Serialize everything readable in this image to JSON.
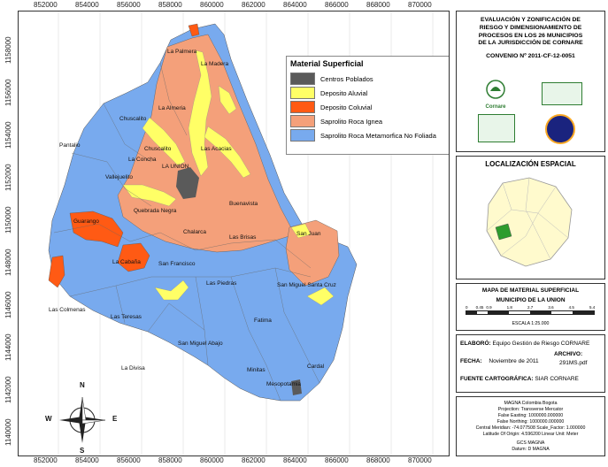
{
  "map": {
    "top_ticks": [
      "852000",
      "854000",
      "856000",
      "858000",
      "860000",
      "862000",
      "864000",
      "866000",
      "868000",
      "870000"
    ],
    "bottom_ticks": [
      "852000",
      "854000",
      "856000",
      "858000",
      "860000",
      "862000",
      "864000",
      "866000",
      "868000",
      "870000"
    ],
    "left_ticks": [
      "1158000",
      "1156000",
      "1154000",
      "1152000",
      "1150000",
      "1148000",
      "1146000",
      "1144000",
      "1142000",
      "1140000"
    ],
    "legend": {
      "title": "Material Superficial",
      "items": [
        {
          "label": "Centros Poblados",
          "color": "#5a5a5a"
        },
        {
          "label": "Deposito Aluvial",
          "color": "#ffff66"
        },
        {
          "label": "Deposito Coluvial",
          "color": "#ff5a14"
        },
        {
          "label": "Saprolito Roca Ignea",
          "color": "#f4a07a"
        },
        {
          "label": "Saprolito Roca Metamorfica No Foliada",
          "color": "#78aaee"
        }
      ]
    },
    "places": {
      "la_palmera": "La Palmera",
      "la_madera": "La Madera",
      "la_almeria": "La Almeria",
      "chuscalito": "Chuscalito",
      "pantalio": "Pantalio",
      "chuscalito_2": "Chuscalito",
      "las_acacias": "Las Acacias",
      "la_concha": "La Concha",
      "la_union": "LA UNION",
      "vallejuelito": "Vallejuelito",
      "quebrada_negra": "Quebrada Negra",
      "buenavista": "Buenavista",
      "guarango": "Guarango",
      "chalarca": "Chalarca",
      "las_brisas": "Las Brisas",
      "san_juan": "San Juan",
      "la_cabana": "La Cabaña",
      "san_francisco": "San Francisco",
      "las_piedras": "Las Piedras",
      "san_miguel_santa_cruz": "San Miguel Santa Cruz",
      "las_colmenas": "Las Colmenas",
      "las_teresas": "Las Teresas",
      "fatima": "Fatima",
      "san_miguel_abajo": "San Miguel Abajo",
      "la_divisa": "La Divisa",
      "minitas": "Minitas",
      "cardal": "Cardal",
      "mesopotamia": "Mesopotamia"
    },
    "compass": {
      "n": "N",
      "s": "S",
      "e": "E",
      "w": "W"
    }
  },
  "side": {
    "title_lines": [
      "EVALUACIÓN Y ZONIFICACIÓN DE",
      "RIESGO Y DIMENSIONAMIENTO DE",
      "PROCESOS EN LOS 26 MUNICIPIOS",
      "DE LA JURISDICCIÓN DE CORNARE"
    ],
    "convenio": "CONVENIO Nº 2011-CF-12-0051",
    "logo_cornare": "Cornare",
    "localizacion_title": "LOCALIZACIÓN ESPACIAL",
    "mapa_title": "MAPA DE MATERIAL SUPERFICIAL",
    "municipio": "MUNICIPIO DE LA UNION",
    "scale_ticks": [
      "0",
      "0.45",
      "0.9",
      "1.8",
      "2.7",
      "3.6",
      "4.5",
      "5.4"
    ],
    "escala": "ESCALA 1:25.000",
    "elaboro_label": "ELABORÓ:",
    "elaboro_value": "Equipo Gestión de Riesgo CORNARE",
    "archivo_label": "ARCHIVO:",
    "fecha_label": "FECHA:",
    "fecha_value": "Noviembre de 2011",
    "archivo_value": "291MS.pdf",
    "fuente_label": "FUENTE CARTOGRÁFICA:",
    "fuente_value": "SIAR CORNARE",
    "proj_lines": [
      "MAGNA Colombia Bogota",
      "Projection: Transverse Mercator",
      "False Easting: 1000000.000000",
      "False Northing: 1000000.000000",
      "Central Meridian: -74.077508  Scale_Factor: 1.000000",
      "Latitude Of Origin: 4.596200  Linear Unit: Meter",
      "",
      "GCS MAGNA",
      "Datum: D MAGNA"
    ]
  }
}
